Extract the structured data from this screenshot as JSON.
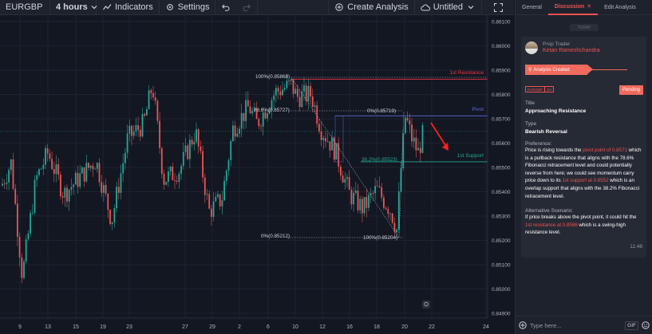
{
  "toolbar": {
    "symbol": "EURGBP",
    "interval": "4 hours",
    "indicators_label": "Indicators",
    "settings_label": "Settings",
    "create_analysis_label": "Create Analysis",
    "layout_label": "Untitled"
  },
  "chart_data": {
    "type": "candlestick",
    "symbol": "EURGBP",
    "interval": "4 hours",
    "ylim": [
      0.8488,
      0.8612
    ],
    "y_ticks": [
      "0.86100",
      "0.86000",
      "0.85900",
      "0.85800",
      "0.85700",
      "0.85600",
      "0.85500",
      "0.85400",
      "0.85300",
      "0.85200",
      "0.85100",
      "0.85000",
      "0.84900"
    ],
    "x_ticks": [
      "9",
      "13",
      "15",
      "19",
      "23",
      "27",
      "29",
      "2",
      "6",
      "10",
      "12",
      "16",
      "18",
      "20",
      "22",
      "24"
    ],
    "levels": [
      {
        "name": "1st Resistance",
        "price": 0.85863,
        "label": "0.85863",
        "color": "#f23645"
      },
      {
        "name": "Pivot",
        "price": 0.85712,
        "label": "0.85712",
        "color": "#5b6bd6"
      },
      {
        "name": "1st Support",
        "price": 0.85523,
        "label": "0.85523",
        "color": "#22ab94"
      }
    ],
    "current_price": {
      "price": 0.85648,
      "label": "0.85648"
    },
    "fibonacci": [
      {
        "label": "100%(0.85868)"
      },
      {
        "label": "78.6%(0.85727)"
      },
      {
        "label": "0%(0.85719)"
      },
      {
        "label": "38.2%(0.85523)"
      },
      {
        "label": "0%(0.85212)"
      },
      {
        "label": "100%(0.85204)"
      }
    ],
    "annotation": "bearish arrow"
  },
  "panel": {
    "tabs": [
      {
        "label": "General"
      },
      {
        "label": "Discussion"
      },
      {
        "label": "Edit Analysis"
      }
    ],
    "today_label": "TODAY",
    "author": {
      "role": "Prop Trader",
      "name": "Ketan Rameshchandra"
    },
    "status_banner": "Analysis Created",
    "chips": [
      "EURGBP",
      "4H"
    ],
    "pending_label": "Pending",
    "title_label": "Title",
    "title_value": "Approaching Resistance",
    "type_label": "Type",
    "type_value": "Bearish Reversal",
    "preference_label": "Preference:",
    "preference_text": {
      "p1": "Price is rising towards the ",
      "h1": "pivot point of 0.8571",
      "p2": " which is a pullback resistance that aligns with the 78.6% Fibonacci retracement level and could potentially reverse from here; we could see momentum carry price down to its ",
      "h2": "1st support at 0.8552",
      "p3": " which is an overlap support that aligns with the 38.2% Fibonacci retracement level."
    },
    "alternative_label": "Alternative Scenario:",
    "alternative_text": {
      "p1": "If price breaks above the pivot point, it could hit the ",
      "h1": "1st resistance at 0.8586",
      "p2": " which is a swing-high resistance level."
    },
    "time": "11:48",
    "composer_placeholder": "Type here...",
    "gif_label": "GIF"
  },
  "colors": {
    "bg": "#131722",
    "panel": "#1e222d",
    "up": "#26a69a",
    "down": "#ef5350",
    "accent": "#f06a5e"
  }
}
